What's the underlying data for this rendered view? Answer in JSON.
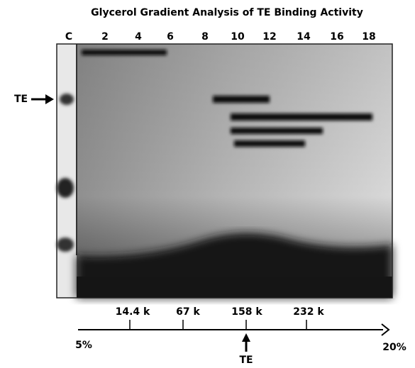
{
  "title": "Glycerol Gradient Analysis of TE Binding Activity",
  "lanes": [
    "C",
    "2",
    "4",
    "6",
    "8",
    "10",
    "12",
    "14",
    "16",
    "18"
  ],
  "side_label": "TE",
  "markers": [
    "14.4 k",
    "67 k",
    "158 k",
    "232 k"
  ],
  "gradient": {
    "start": "5%",
    "end": "20%"
  },
  "peak_label": "TE"
}
